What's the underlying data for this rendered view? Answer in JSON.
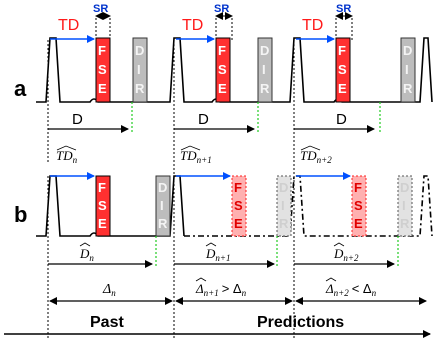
{
  "colors": {
    "fse_fill": "#ff3030",
    "fse_light": "#ff9a9a",
    "fse_text": "#e00000",
    "dir_fill": "#bdbdbd",
    "dir_text": "#f4f4f4",
    "td_arrow": "#0050ff",
    "dotted_green": "#22cc22",
    "td_text": "#ff1a1a",
    "sr_text": "#0033cc"
  },
  "row_a": {
    "label": "a",
    "td_label": "TD",
    "sr_label": "SR",
    "fse_letters": [
      "F",
      "S",
      "E"
    ],
    "dir_letters": [
      "D",
      "I",
      "R"
    ],
    "d_labels": [
      "D",
      "D",
      "D"
    ]
  },
  "row_b": {
    "label": "b",
    "td_base": "TD",
    "td_subs": [
      "n",
      "n+1",
      "n+2"
    ],
    "d_base": "D",
    "d_subs": [
      "n",
      "n+1",
      "n+2"
    ]
  },
  "intervals": {
    "delta_n": "Δ",
    "delta_n_sub": "n",
    "delta_n1_sub": "n+1",
    "delta_n1_rel": "> Δ",
    "delta_n1_rel_sub": "n",
    "delta_n2_sub": "n+2",
    "delta_n2_rel": "< Δ",
    "delta_n2_rel_sub": "n"
  },
  "bottom": {
    "past_label": "Past",
    "predictions_label": "Predictions"
  }
}
